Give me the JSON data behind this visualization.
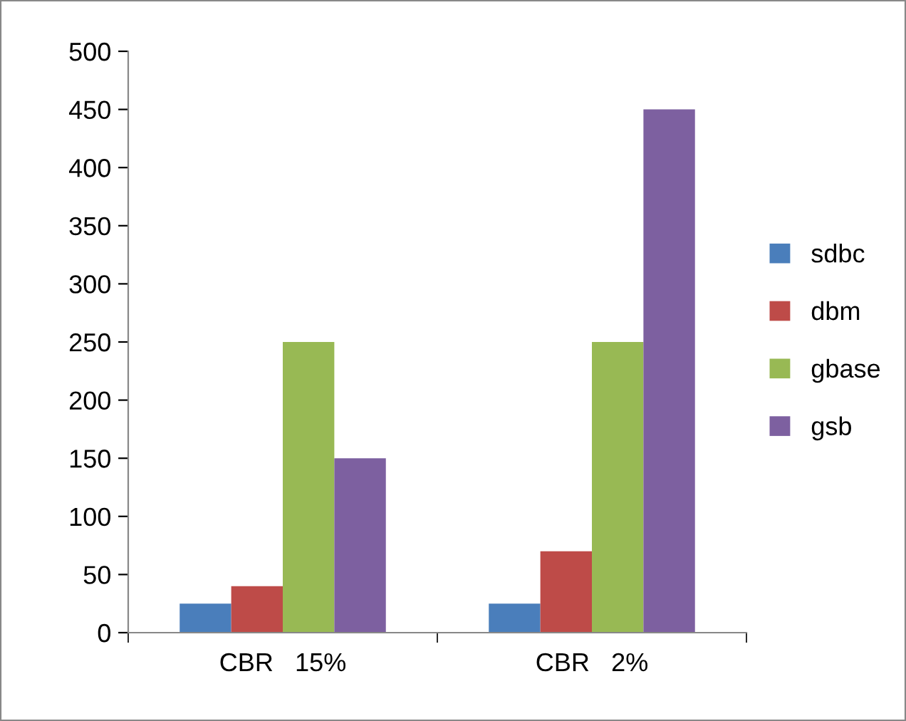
{
  "chart_data": {
    "type": "bar",
    "categories": [
      "CBR   15%",
      "CBR   2%"
    ],
    "series": [
      {
        "name": "sdbc",
        "color": "#4a7ebb",
        "values": [
          25,
          25
        ]
      },
      {
        "name": "dbm",
        "color": "#be4b48",
        "values": [
          40,
          70
        ]
      },
      {
        "name": "gbase",
        "color": "#98b954",
        "values": [
          250,
          250
        ]
      },
      {
        "name": "gsb",
        "color": "#7d60a0",
        "values": [
          150,
          450
        ]
      }
    ],
    "ylim": [
      0,
      500
    ],
    "yticks": [
      0,
      50,
      100,
      150,
      200,
      250,
      300,
      350,
      400,
      450,
      500
    ],
    "grid": false,
    "legend": "right"
  }
}
